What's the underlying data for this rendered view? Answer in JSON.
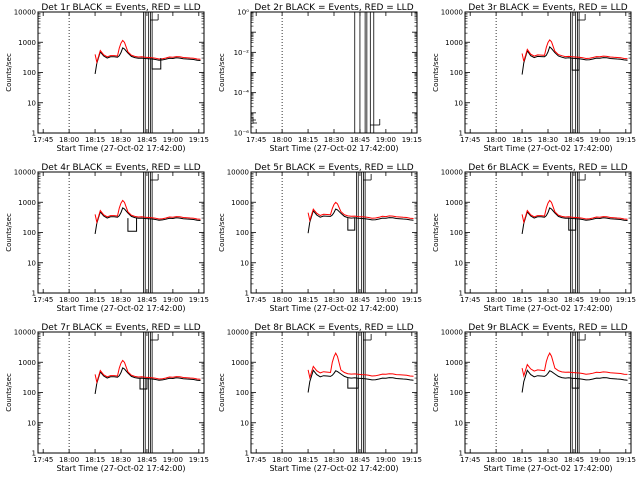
{
  "figure": {
    "title_suffix": " BLACK = Events, RED = LLD",
    "xlabel": "Start Time (27-Oct-02 17:42:00)",
    "ylabel": "Counts/sec",
    "x_ticks": [
      "17:45",
      "18:00",
      "18:15",
      "18:30",
      "18:45",
      "19:00",
      "19:15"
    ],
    "x_tick_minutes": [
      3,
      18,
      33,
      48,
      63,
      78,
      93
    ],
    "x_range_minutes": [
      0,
      96
    ],
    "y_ticks_log": [
      "1",
      "10",
      "100",
      "1000",
      "10000"
    ],
    "y_ticks_det2": [
      "10⁰",
      "10⁻²",
      "10⁻⁴",
      "10⁻⁶"
    ],
    "dotted_line_minute": 18,
    "series_names": [
      "Events",
      "LLD"
    ],
    "colors": {
      "events": "#000000",
      "lld": "#ff0000",
      "background": "#ffffff"
    }
  },
  "chart_data": [
    {
      "type": "line",
      "title": "Det 1r",
      "scale": "log",
      "ylim": [
        1,
        10000
      ],
      "data_start_min": 33,
      "lld_factor": 1.1,
      "peak": 1150,
      "vlines_min": [
        61,
        62,
        64,
        65,
        66
      ],
      "hollow_min": [
        66,
        71
      ],
      "hollow_level": 130,
      "events_x": [
        33,
        34,
        36,
        38,
        40,
        42,
        44,
        46,
        47,
        48,
        49,
        50,
        52,
        54,
        56,
        58,
        60,
        62,
        64,
        66,
        68,
        70,
        72,
        74,
        76,
        78,
        80,
        82,
        84,
        86,
        88,
        90,
        92,
        94
      ],
      "events_y": [
        90,
        200,
        480,
        350,
        300,
        330,
        330,
        320,
        360,
        460,
        650,
        600,
        440,
        340,
        310,
        295,
        300,
        290,
        285,
        280,
        270,
        255,
        260,
        275,
        295,
        290,
        305,
        300,
        285,
        280,
        275,
        270,
        255,
        250
      ]
    },
    {
      "type": "line",
      "title": "Det 2r",
      "scale": "log",
      "ylim": [
        1e-06,
        1
      ],
      "data_start_min": null,
      "lld_factor": 1.0,
      "peak": null,
      "vlines_min": [
        60,
        63,
        66,
        67,
        69,
        71
      ],
      "hollow_min": null,
      "hollow_level": null,
      "events_x": [],
      "events_y": []
    },
    {
      "type": "line",
      "title": "Det 3r",
      "scale": "log",
      "ylim": [
        1,
        10000
      ],
      "data_start_min": 33,
      "lld_factor": 1.12,
      "peak": 1200,
      "vlines_min": [
        61,
        62,
        64,
        65,
        66
      ],
      "hollow_min": [
        62,
        66
      ],
      "hollow_level": 120,
      "events_x": [
        33,
        34,
        36,
        38,
        40,
        42,
        44,
        46,
        47,
        48,
        49,
        50,
        52,
        54,
        56,
        58,
        60,
        62,
        64,
        66,
        68,
        70,
        72,
        74,
        76,
        78,
        80,
        82,
        84,
        86,
        88,
        90,
        92,
        94
      ],
      "events_y": [
        85,
        210,
        520,
        360,
        310,
        340,
        335,
        330,
        370,
        480,
        700,
        620,
        450,
        350,
        320,
        300,
        305,
        295,
        290,
        285,
        275,
        260,
        265,
        280,
        300,
        295,
        310,
        305,
        290,
        285,
        280,
        275,
        260,
        255
      ]
    },
    {
      "type": "line",
      "title": "Det 4r",
      "scale": "log",
      "ylim": [
        1,
        10000
      ],
      "data_start_min": 33,
      "lld_factor": 1.1,
      "peak": 1150,
      "vlines_min": [
        61,
        62,
        64,
        65,
        66
      ],
      "hollow_min": [
        52,
        57
      ],
      "hollow_level": 110,
      "events_x": [
        33,
        34,
        36,
        38,
        40,
        42,
        44,
        46,
        47,
        48,
        49,
        50,
        52,
        54,
        56,
        58,
        60,
        62,
        64,
        66,
        68,
        70,
        72,
        74,
        76,
        78,
        80,
        82,
        84,
        86,
        88,
        90,
        92,
        94
      ],
      "events_y": [
        90,
        200,
        480,
        350,
        300,
        330,
        330,
        320,
        360,
        460,
        650,
        600,
        440,
        340,
        310,
        295,
        300,
        290,
        285,
        280,
        270,
        255,
        260,
        275,
        295,
        290,
        305,
        300,
        285,
        280,
        275,
        270,
        255,
        250
      ]
    },
    {
      "type": "line",
      "title": "Det 5r",
      "scale": "log",
      "ylim": [
        1,
        10000
      ],
      "data_start_min": 33,
      "lld_factor": 1.14,
      "peak": 1000,
      "vlines_min": [
        61,
        62,
        64,
        65,
        66
      ],
      "hollow_min": [
        56,
        60
      ],
      "hollow_level": 120,
      "events_x": [
        33,
        34,
        36,
        38,
        40,
        42,
        44,
        46,
        47,
        48,
        49,
        50,
        52,
        54,
        56,
        58,
        60,
        62,
        64,
        66,
        68,
        70,
        72,
        74,
        76,
        78,
        80,
        82,
        84,
        86,
        88,
        90,
        92,
        94
      ],
      "events_y": [
        95,
        220,
        520,
        380,
        320,
        350,
        345,
        340,
        380,
        460,
        600,
        560,
        430,
        340,
        310,
        300,
        305,
        295,
        290,
        285,
        275,
        260,
        265,
        280,
        300,
        295,
        310,
        305,
        290,
        285,
        280,
        275,
        260,
        255
      ]
    },
    {
      "type": "line",
      "title": "Det 6r",
      "scale": "log",
      "ylim": [
        1,
        10000
      ],
      "data_start_min": 33,
      "lld_factor": 1.1,
      "peak": 1150,
      "vlines_min": [
        61,
        62,
        64,
        65,
        66
      ],
      "hollow_min": [
        60,
        64
      ],
      "hollow_level": 120,
      "events_x": [
        33,
        34,
        36,
        38,
        40,
        42,
        44,
        46,
        47,
        48,
        49,
        50,
        52,
        54,
        56,
        58,
        60,
        62,
        64,
        66,
        68,
        70,
        72,
        74,
        76,
        78,
        80,
        82,
        84,
        86,
        88,
        90,
        92,
        94
      ],
      "events_y": [
        90,
        200,
        480,
        350,
        300,
        330,
        330,
        320,
        360,
        460,
        650,
        600,
        440,
        340,
        310,
        295,
        300,
        290,
        285,
        280,
        270,
        255,
        260,
        275,
        295,
        290,
        305,
        300,
        285,
        280,
        275,
        270,
        255,
        250
      ]
    },
    {
      "type": "line",
      "title": "Det 7r",
      "scale": "log",
      "ylim": [
        1,
        10000
      ],
      "data_start_min": 33,
      "lld_factor": 1.1,
      "peak": 1150,
      "vlines_min": [
        61,
        62,
        64,
        65,
        66
      ],
      "hollow_min": [
        59,
        63
      ],
      "hollow_level": 130,
      "events_x": [
        33,
        34,
        36,
        38,
        40,
        42,
        44,
        46,
        47,
        48,
        49,
        50,
        52,
        54,
        56,
        58,
        60,
        62,
        64,
        66,
        68,
        70,
        72,
        74,
        76,
        78,
        80,
        82,
        84,
        86,
        88,
        90,
        92,
        94
      ],
      "events_y": [
        90,
        200,
        480,
        350,
        300,
        330,
        330,
        320,
        360,
        460,
        650,
        600,
        440,
        340,
        310,
        295,
        300,
        290,
        285,
        280,
        270,
        255,
        260,
        275,
        295,
        290,
        305,
        300,
        285,
        280,
        275,
        270,
        255,
        250
      ]
    },
    {
      "type": "line",
      "title": "Det 8r",
      "scale": "log",
      "ylim": [
        1,
        10000
      ],
      "data_start_min": 33,
      "lld_factor": 1.35,
      "peak": 2000,
      "vlines_min": [
        61,
        62,
        64,
        65,
        66
      ],
      "hollow_min": [
        56,
        62
      ],
      "hollow_level": 140,
      "events_x": [
        33,
        34,
        36,
        38,
        40,
        42,
        44,
        46,
        47,
        48,
        49,
        50,
        52,
        54,
        56,
        58,
        60,
        62,
        64,
        66,
        68,
        70,
        72,
        74,
        76,
        78,
        80,
        82,
        84,
        86,
        88,
        90,
        92,
        94
      ],
      "events_y": [
        100,
        230,
        540,
        390,
        330,
        360,
        350,
        340,
        370,
        430,
        520,
        490,
        410,
        340,
        310,
        300,
        305,
        295,
        290,
        285,
        275,
        260,
        265,
        280,
        300,
        295,
        310,
        305,
        290,
        285,
        280,
        275,
        260,
        255
      ]
    },
    {
      "type": "line",
      "title": "Det 9r",
      "scale": "log",
      "ylim": [
        1,
        10000
      ],
      "data_start_min": 33,
      "lld_factor": 1.55,
      "peak": 2000,
      "vlines_min": [
        61,
        62,
        64,
        65,
        66
      ],
      "hollow_min": [
        62,
        66
      ],
      "hollow_level": 140,
      "events_x": [
        33,
        34,
        36,
        38,
        40,
        42,
        44,
        46,
        47,
        48,
        49,
        50,
        52,
        54,
        56,
        58,
        60,
        62,
        64,
        66,
        68,
        70,
        72,
        74,
        76,
        78,
        80,
        82,
        84,
        86,
        88,
        90,
        92,
        94
      ],
      "events_y": [
        100,
        230,
        540,
        390,
        330,
        360,
        350,
        340,
        370,
        430,
        520,
        490,
        410,
        340,
        310,
        300,
        305,
        295,
        290,
        285,
        275,
        260,
        265,
        280,
        300,
        295,
        310,
        305,
        290,
        285,
        280,
        275,
        260,
        255
      ]
    }
  ]
}
